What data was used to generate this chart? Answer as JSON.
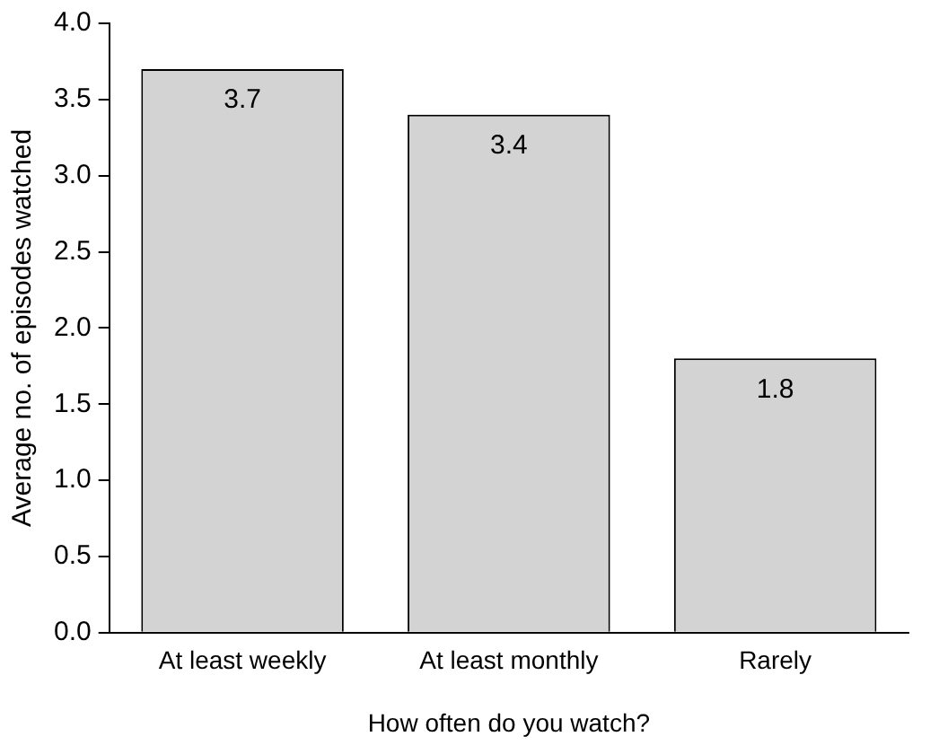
{
  "chart_data": {
    "type": "bar",
    "xlabel": "How often do you watch?",
    "ylabel": "Average no. of episodes watched",
    "categories": [
      "At least weekly",
      "At least monthly",
      "Rarely"
    ],
    "values": [
      3.7,
      3.4,
      1.8
    ],
    "color": "#d3d3d3",
    "ylim": [
      0,
      4
    ],
    "yticks": [
      {
        "value": 0,
        "label": "0.0"
      },
      0.5,
      {
        "value": 1,
        "label": "1.0"
      },
      1.5,
      {
        "value": 2,
        "label": "2.0"
      },
      2.5,
      {
        "value": 3,
        "label": "3.0"
      },
      3.5,
      {
        "value": 4,
        "label": "4.0"
      }
    ],
    "grid": false,
    "legend": false,
    "data_labels": true
  }
}
